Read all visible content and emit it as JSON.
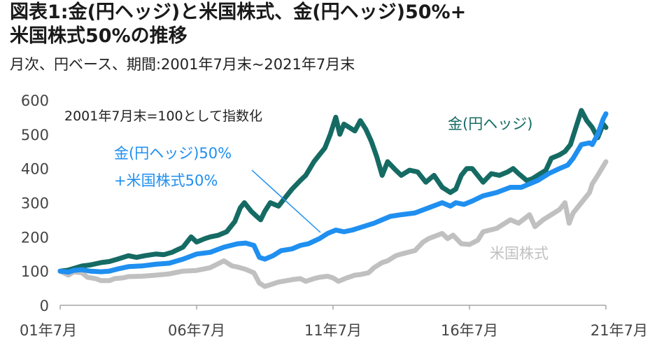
{
  "title_line1": "図表1:金(円ヘッジ)と米国株式、金(円ヘッジ)50%+",
  "title_line2": "米国株式50%の推移",
  "subtitle": "月次、円ベース、期間:2001年7月末~2021年7月末",
  "chart_data": {
    "type": "line",
    "note": "2001年7月末=100として指数化",
    "ylim": [
      0,
      600
    ],
    "yticks": [
      "0",
      "100",
      "200",
      "300",
      "400",
      "500",
      "600"
    ],
    "xlim": [
      2001.5,
      2021.5
    ],
    "xticks": [
      {
        "x": 2001.5,
        "label": "01年7月"
      },
      {
        "x": 2006.5,
        "label": "06年7月"
      },
      {
        "x": 2011.5,
        "label": "11年7月"
      },
      {
        "x": 2016.5,
        "label": "16年7月"
      },
      {
        "x": 2021.5,
        "label": "21年7月"
      }
    ],
    "grid": false,
    "series": [
      {
        "name": "米国株式",
        "label_lines": [
          "米国株式"
        ],
        "color": "#c0c0c0",
        "points": [
          [
            2001.5,
            100
          ],
          [
            2001.8,
            88
          ],
          [
            2002.0,
            98
          ],
          [
            2002.3,
            95
          ],
          [
            2002.5,
            82
          ],
          [
            2002.8,
            78
          ],
          [
            2003.0,
            72
          ],
          [
            2003.3,
            72
          ],
          [
            2003.5,
            78
          ],
          [
            2003.8,
            80
          ],
          [
            2004.0,
            84
          ],
          [
            2004.5,
            85
          ],
          [
            2005.0,
            88
          ],
          [
            2005.5,
            92
          ],
          [
            2006.0,
            100
          ],
          [
            2006.5,
            102
          ],
          [
            2007.0,
            110
          ],
          [
            2007.5,
            130
          ],
          [
            2007.8,
            115
          ],
          [
            2008.0,
            112
          ],
          [
            2008.3,
            105
          ],
          [
            2008.6,
            95
          ],
          [
            2008.8,
            65
          ],
          [
            2009.0,
            55
          ],
          [
            2009.2,
            60
          ],
          [
            2009.5,
            68
          ],
          [
            2009.8,
            72
          ],
          [
            2010.0,
            75
          ],
          [
            2010.3,
            78
          ],
          [
            2010.5,
            70
          ],
          [
            2010.8,
            78
          ],
          [
            2011.0,
            82
          ],
          [
            2011.3,
            85
          ],
          [
            2011.5,
            80
          ],
          [
            2011.7,
            70
          ],
          [
            2012.0,
            80
          ],
          [
            2012.3,
            88
          ],
          [
            2012.5,
            90
          ],
          [
            2012.8,
            95
          ],
          [
            2013.0,
            110
          ],
          [
            2013.3,
            125
          ],
          [
            2013.5,
            130
          ],
          [
            2013.8,
            145
          ],
          [
            2014.0,
            150
          ],
          [
            2014.5,
            160
          ],
          [
            2014.8,
            185
          ],
          [
            2015.0,
            195
          ],
          [
            2015.5,
            210
          ],
          [
            2015.7,
            195
          ],
          [
            2015.9,
            205
          ],
          [
            2016.2,
            180
          ],
          [
            2016.5,
            178
          ],
          [
            2016.8,
            190
          ],
          [
            2017.0,
            215
          ],
          [
            2017.5,
            225
          ],
          [
            2018.0,
            250
          ],
          [
            2018.3,
            240
          ],
          [
            2018.7,
            265
          ],
          [
            2018.9,
            230
          ],
          [
            2019.2,
            250
          ],
          [
            2019.5,
            265
          ],
          [
            2019.8,
            280
          ],
          [
            2020.0,
            300
          ],
          [
            2020.15,
            240
          ],
          [
            2020.3,
            270
          ],
          [
            2020.6,
            300
          ],
          [
            2020.9,
            330
          ],
          [
            2021.0,
            355
          ],
          [
            2021.2,
            380
          ],
          [
            2021.5,
            420
          ]
        ]
      },
      {
        "name": "金(円ヘッジ)",
        "label_lines": [
          "金(円ヘッジ)"
        ],
        "color": "#156b63",
        "points": [
          [
            2001.5,
            100
          ],
          [
            2001.8,
            103
          ],
          [
            2002.0,
            108
          ],
          [
            2002.3,
            115
          ],
          [
            2002.6,
            118
          ],
          [
            2003.0,
            125
          ],
          [
            2003.3,
            128
          ],
          [
            2003.6,
            135
          ],
          [
            2004.0,
            145
          ],
          [
            2004.3,
            140
          ],
          [
            2004.6,
            145
          ],
          [
            2005.0,
            150
          ],
          [
            2005.3,
            148
          ],
          [
            2005.6,
            155
          ],
          [
            2006.0,
            170
          ],
          [
            2006.3,
            200
          ],
          [
            2006.5,
            185
          ],
          [
            2006.8,
            195
          ],
          [
            2007.0,
            200
          ],
          [
            2007.3,
            205
          ],
          [
            2007.6,
            215
          ],
          [
            2007.9,
            245
          ],
          [
            2008.1,
            285
          ],
          [
            2008.25,
            300
          ],
          [
            2008.5,
            275
          ],
          [
            2008.7,
            260
          ],
          [
            2008.85,
            250
          ],
          [
            2009.0,
            275
          ],
          [
            2009.2,
            300
          ],
          [
            2009.5,
            290
          ],
          [
            2009.8,
            320
          ],
          [
            2010.0,
            340
          ],
          [
            2010.3,
            365
          ],
          [
            2010.5,
            380
          ],
          [
            2010.8,
            420
          ],
          [
            2011.0,
            440
          ],
          [
            2011.2,
            460
          ],
          [
            2011.4,
            500
          ],
          [
            2011.6,
            550
          ],
          [
            2011.75,
            500
          ],
          [
            2011.9,
            530
          ],
          [
            2012.1,
            520
          ],
          [
            2012.3,
            510
          ],
          [
            2012.5,
            540
          ],
          [
            2012.7,
            515
          ],
          [
            2012.9,
            480
          ],
          [
            2013.1,
            435
          ],
          [
            2013.3,
            380
          ],
          [
            2013.5,
            420
          ],
          [
            2013.8,
            395
          ],
          [
            2014.0,
            380
          ],
          [
            2014.3,
            395
          ],
          [
            2014.6,
            390
          ],
          [
            2014.9,
            360
          ],
          [
            2015.2,
            380
          ],
          [
            2015.5,
            345
          ],
          [
            2015.8,
            330
          ],
          [
            2016.0,
            340
          ],
          [
            2016.2,
            380
          ],
          [
            2016.4,
            400
          ],
          [
            2016.6,
            400
          ],
          [
            2016.8,
            380
          ],
          [
            2017.0,
            360
          ],
          [
            2017.3,
            385
          ],
          [
            2017.6,
            380
          ],
          [
            2017.9,
            390
          ],
          [
            2018.1,
            400
          ],
          [
            2018.3,
            385
          ],
          [
            2018.6,
            365
          ],
          [
            2018.8,
            370
          ],
          [
            2019.0,
            380
          ],
          [
            2019.3,
            395
          ],
          [
            2019.5,
            430
          ],
          [
            2019.8,
            440
          ],
          [
            2020.0,
            450
          ],
          [
            2020.2,
            470
          ],
          [
            2020.4,
            520
          ],
          [
            2020.6,
            570
          ],
          [
            2020.8,
            540
          ],
          [
            2021.0,
            520
          ],
          [
            2021.2,
            490
          ],
          [
            2021.4,
            530
          ],
          [
            2021.5,
            520
          ]
        ]
      },
      {
        "name": "金(円ヘッジ)50%+米国株式50%",
        "label_lines": [
          "金(円ヘッジ)50%",
          "+米国株式50%"
        ],
        "color": "#1f8ff0",
        "points": [
          [
            2001.5,
            100
          ],
          [
            2001.8,
            97
          ],
          [
            2002.0,
            102
          ],
          [
            2002.3,
            104
          ],
          [
            2002.6,
            100
          ],
          [
            2003.0,
            98
          ],
          [
            2003.3,
            100
          ],
          [
            2003.6,
            106
          ],
          [
            2004.0,
            113
          ],
          [
            2004.5,
            115
          ],
          [
            2005.0,
            120
          ],
          [
            2005.5,
            123
          ],
          [
            2006.0,
            135
          ],
          [
            2006.5,
            150
          ],
          [
            2007.0,
            155
          ],
          [
            2007.5,
            170
          ],
          [
            2008.0,
            180
          ],
          [
            2008.3,
            182
          ],
          [
            2008.6,
            175
          ],
          [
            2008.8,
            140
          ],
          [
            2009.0,
            135
          ],
          [
            2009.3,
            145
          ],
          [
            2009.6,
            160
          ],
          [
            2010.0,
            165
          ],
          [
            2010.3,
            175
          ],
          [
            2010.6,
            180
          ],
          [
            2011.0,
            195
          ],
          [
            2011.3,
            210
          ],
          [
            2011.6,
            220
          ],
          [
            2011.9,
            215
          ],
          [
            2012.2,
            220
          ],
          [
            2012.6,
            230
          ],
          [
            2013.0,
            240
          ],
          [
            2013.3,
            250
          ],
          [
            2013.6,
            260
          ],
          [
            2014.0,
            265
          ],
          [
            2014.5,
            270
          ],
          [
            2015.0,
            285
          ],
          [
            2015.5,
            300
          ],
          [
            2015.8,
            290
          ],
          [
            2016.0,
            300
          ],
          [
            2016.3,
            295
          ],
          [
            2016.6,
            305
          ],
          [
            2017.0,
            320
          ],
          [
            2017.5,
            330
          ],
          [
            2018.0,
            345
          ],
          [
            2018.4,
            345
          ],
          [
            2018.7,
            355
          ],
          [
            2019.0,
            365
          ],
          [
            2019.4,
            385
          ],
          [
            2019.8,
            400
          ],
          [
            2020.1,
            410
          ],
          [
            2020.3,
            430
          ],
          [
            2020.6,
            470
          ],
          [
            2020.9,
            475
          ],
          [
            2021.0,
            470
          ],
          [
            2021.2,
            500
          ],
          [
            2021.4,
            545
          ],
          [
            2021.5,
            560
          ]
        ]
      }
    ]
  }
}
